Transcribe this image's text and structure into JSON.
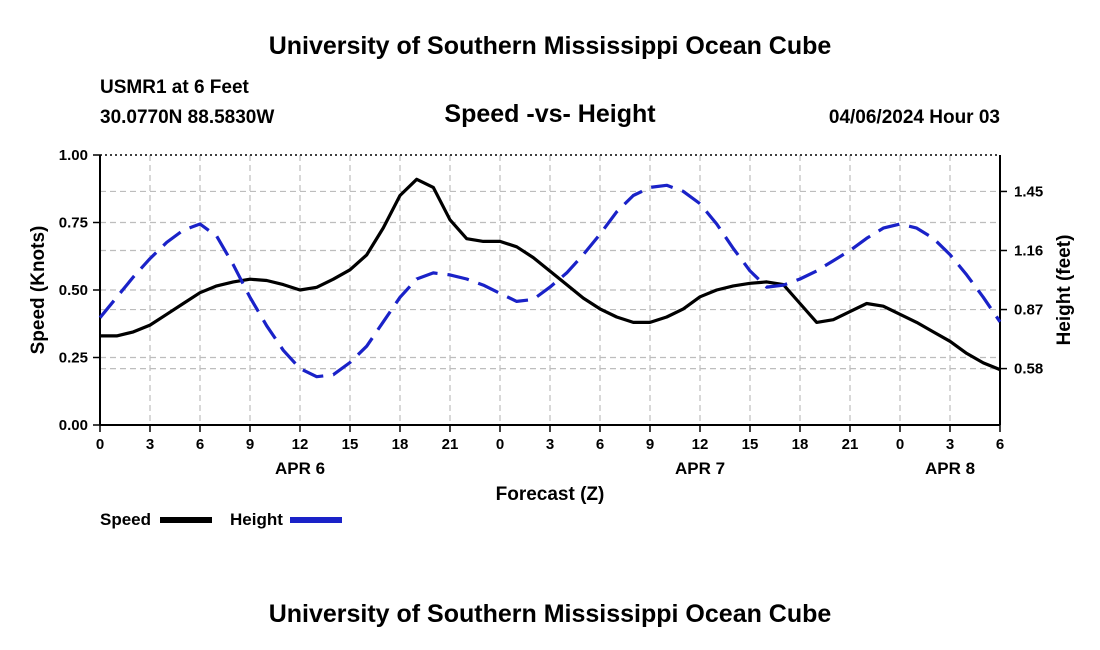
{
  "page": {
    "top_title": "University of Southern Mississippi Ocean Cube",
    "bottom_title": "University of Southern Mississippi Ocean Cube",
    "station": "USMR1 at 6 Feet",
    "location": "30.0770N   88.5830W",
    "datetime": "04/06/2024 Hour 03"
  },
  "legend": {
    "speed_label": "Speed",
    "height_label": "Height"
  },
  "colors": {
    "speed": "#000000",
    "height": "#1a22c8",
    "grid": "#bdbdbd"
  },
  "chart_data": {
    "type": "line",
    "title": "Speed -vs- Height",
    "xlabel": "Forecast (Z)",
    "ylabel": "Speed (Knots)",
    "y2label": "Height (feet)",
    "x_range": [
      0,
      54
    ],
    "ylim": [
      0,
      1
    ],
    "y2lim": [
      0.303,
      1.629
    ],
    "x_ticks": [
      0,
      3,
      6,
      9,
      12,
      15,
      18,
      21,
      24,
      27,
      30,
      33,
      36,
      39,
      42,
      45,
      48,
      51,
      54
    ],
    "x_tick_labels": [
      "0",
      "3",
      "6",
      "9",
      "12",
      "15",
      "18",
      "21",
      "0",
      "3",
      "6",
      "9",
      "12",
      "15",
      "18",
      "21",
      "0",
      "3",
      "6"
    ],
    "date_labels": [
      {
        "x": 12,
        "label": "APR 6"
      },
      {
        "x": 36,
        "label": "APR 7"
      },
      {
        "x": 51,
        "label": "APR 8"
      }
    ],
    "y_ticks": [
      0,
      0.25,
      0.5,
      0.75,
      1.0
    ],
    "y_tick_labels": [
      "0.00",
      "0.25",
      "0.50",
      "0.75",
      "1.00"
    ],
    "y2_ticks": [
      0.58,
      0.87,
      1.16,
      1.45
    ],
    "y2_tick_labels": [
      "0.58",
      "0.87",
      "1.16",
      "1.45"
    ],
    "series": [
      {
        "name": "Speed",
        "axis": "left",
        "style": "solid",
        "x": [
          0,
          1,
          2,
          3,
          4,
          5,
          6,
          7,
          8,
          9,
          10,
          11,
          12,
          13,
          14,
          15,
          16,
          17,
          18,
          19,
          20,
          21,
          22,
          23,
          24,
          25,
          26,
          27,
          28,
          29,
          30,
          31,
          32,
          33,
          34,
          35,
          36,
          37,
          38,
          39,
          40,
          41,
          42,
          43,
          44,
          45,
          46,
          47,
          48,
          49,
          50,
          51,
          52,
          53,
          54
        ],
        "values": [
          0.33,
          0.33,
          0.345,
          0.37,
          0.41,
          0.45,
          0.49,
          0.515,
          0.53,
          0.54,
          0.535,
          0.52,
          0.5,
          0.51,
          0.54,
          0.575,
          0.63,
          0.73,
          0.85,
          0.91,
          0.88,
          0.76,
          0.69,
          0.68,
          0.68,
          0.66,
          0.62,
          0.57,
          0.52,
          0.47,
          0.43,
          0.4,
          0.38,
          0.38,
          0.4,
          0.43,
          0.475,
          0.5,
          0.515,
          0.525,
          0.53,
          0.52,
          0.45,
          0.38,
          0.39,
          0.42,
          0.45,
          0.44,
          0.41,
          0.38,
          0.345,
          0.31,
          0.265,
          0.23,
          0.205
        ]
      },
      {
        "name": "Height",
        "axis": "right",
        "style": "dashed",
        "x": [
          0,
          1,
          2,
          3,
          4,
          5,
          6,
          7,
          8,
          9,
          10,
          11,
          12,
          13,
          14,
          15,
          16,
          17,
          18,
          19,
          20,
          21,
          22,
          23,
          24,
          25,
          26,
          27,
          28,
          29,
          30,
          31,
          32,
          33,
          34,
          35,
          36,
          37,
          38,
          39,
          40,
          41,
          42,
          43,
          44,
          45,
          46,
          47,
          48,
          49,
          50,
          51,
          52,
          53,
          54
        ],
        "values": [
          0.83,
          0.93,
          1.03,
          1.12,
          1.2,
          1.26,
          1.29,
          1.23,
          1.09,
          0.93,
          0.79,
          0.67,
          0.58,
          0.54,
          0.55,
          0.61,
          0.69,
          0.81,
          0.93,
          1.02,
          1.05,
          1.04,
          1.02,
          0.99,
          0.95,
          0.91,
          0.92,
          0.98,
          1.05,
          1.14,
          1.24,
          1.35,
          1.43,
          1.47,
          1.48,
          1.45,
          1.39,
          1.29,
          1.17,
          1.06,
          0.98,
          0.99,
          1.02,
          1.06,
          1.11,
          1.16,
          1.22,
          1.27,
          1.29,
          1.27,
          1.22,
          1.14,
          1.04,
          0.93,
          0.81
        ]
      }
    ]
  }
}
